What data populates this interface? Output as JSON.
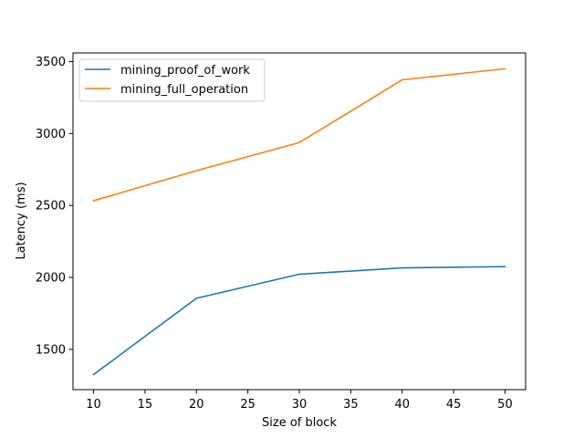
{
  "chart_data": {
    "type": "line",
    "title": "",
    "xlabel": "Size of block",
    "ylabel": "Latency (ms)",
    "x": [
      10,
      20,
      30,
      40,
      50
    ],
    "xlim": [
      8,
      52
    ],
    "ylim": [
      1220,
      3560
    ],
    "xticks": [
      10,
      15,
      20,
      25,
      30,
      35,
      40,
      45,
      50
    ],
    "yticks": [
      1500,
      2000,
      2500,
      3000,
      3500
    ],
    "grid": false,
    "legend_position": "top-left",
    "series": [
      {
        "name": "mining_proof_of_work",
        "color": "#1f77b4",
        "values": [
          1325,
          1855,
          2022,
          2066,
          2075
        ]
      },
      {
        "name": "mining_full_operation",
        "color": "#ff7f0e",
        "values": [
          2533,
          2742,
          2937,
          3373,
          3450
        ]
      }
    ]
  }
}
